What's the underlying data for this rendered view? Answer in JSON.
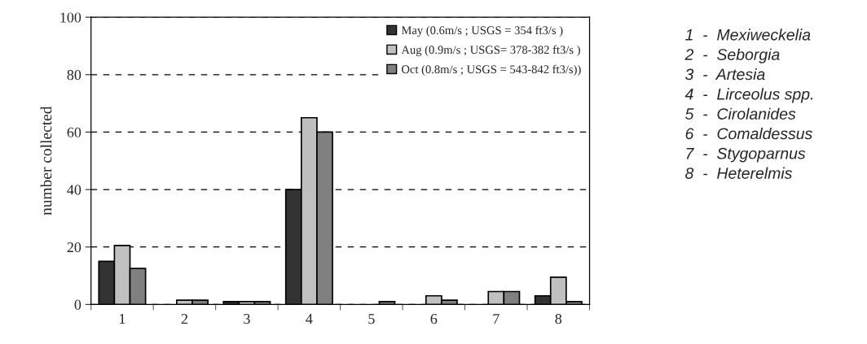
{
  "chart_data": {
    "type": "bar",
    "ylabel": "number collected",
    "categories": [
      "1",
      "2",
      "3",
      "4",
      "5",
      "6",
      "7",
      "8"
    ],
    "series": [
      {
        "name": "May (0.6m/s ; USGS = 354 ft3/s )",
        "color": "#333333",
        "values": [
          15,
          null,
          1,
          40,
          null,
          null,
          null,
          3
        ]
      },
      {
        "name": "Aug (0.9m/s ; USGS= 378-382 ft3/s )",
        "color": "#c0c0c0",
        "values": [
          20.5,
          1.5,
          1,
          65,
          null,
          3,
          4.5,
          9.5
        ]
      },
      {
        "name": "Oct (0.8m/s ; USGS = 543-842 ft3/s))",
        "color": "#808080",
        "values": [
          12.5,
          1.5,
          1,
          60,
          1,
          1.5,
          4.5,
          1
        ]
      }
    ],
    "ylim": [
      0,
      100
    ],
    "yticks": [
      0,
      20,
      40,
      60,
      80,
      100
    ],
    "grid": "y",
    "legend": "top right",
    "annotations": [
      "1  -  Mexiweckelia",
      "2  -  Seborgia",
      "3  -  Artesia",
      "4  -  Lirceolus spp.",
      "5  -  Cirolanides",
      "6  -  Comaldessus",
      "7  -  Stygoparnus",
      "8  -  Heterelmis"
    ]
  }
}
